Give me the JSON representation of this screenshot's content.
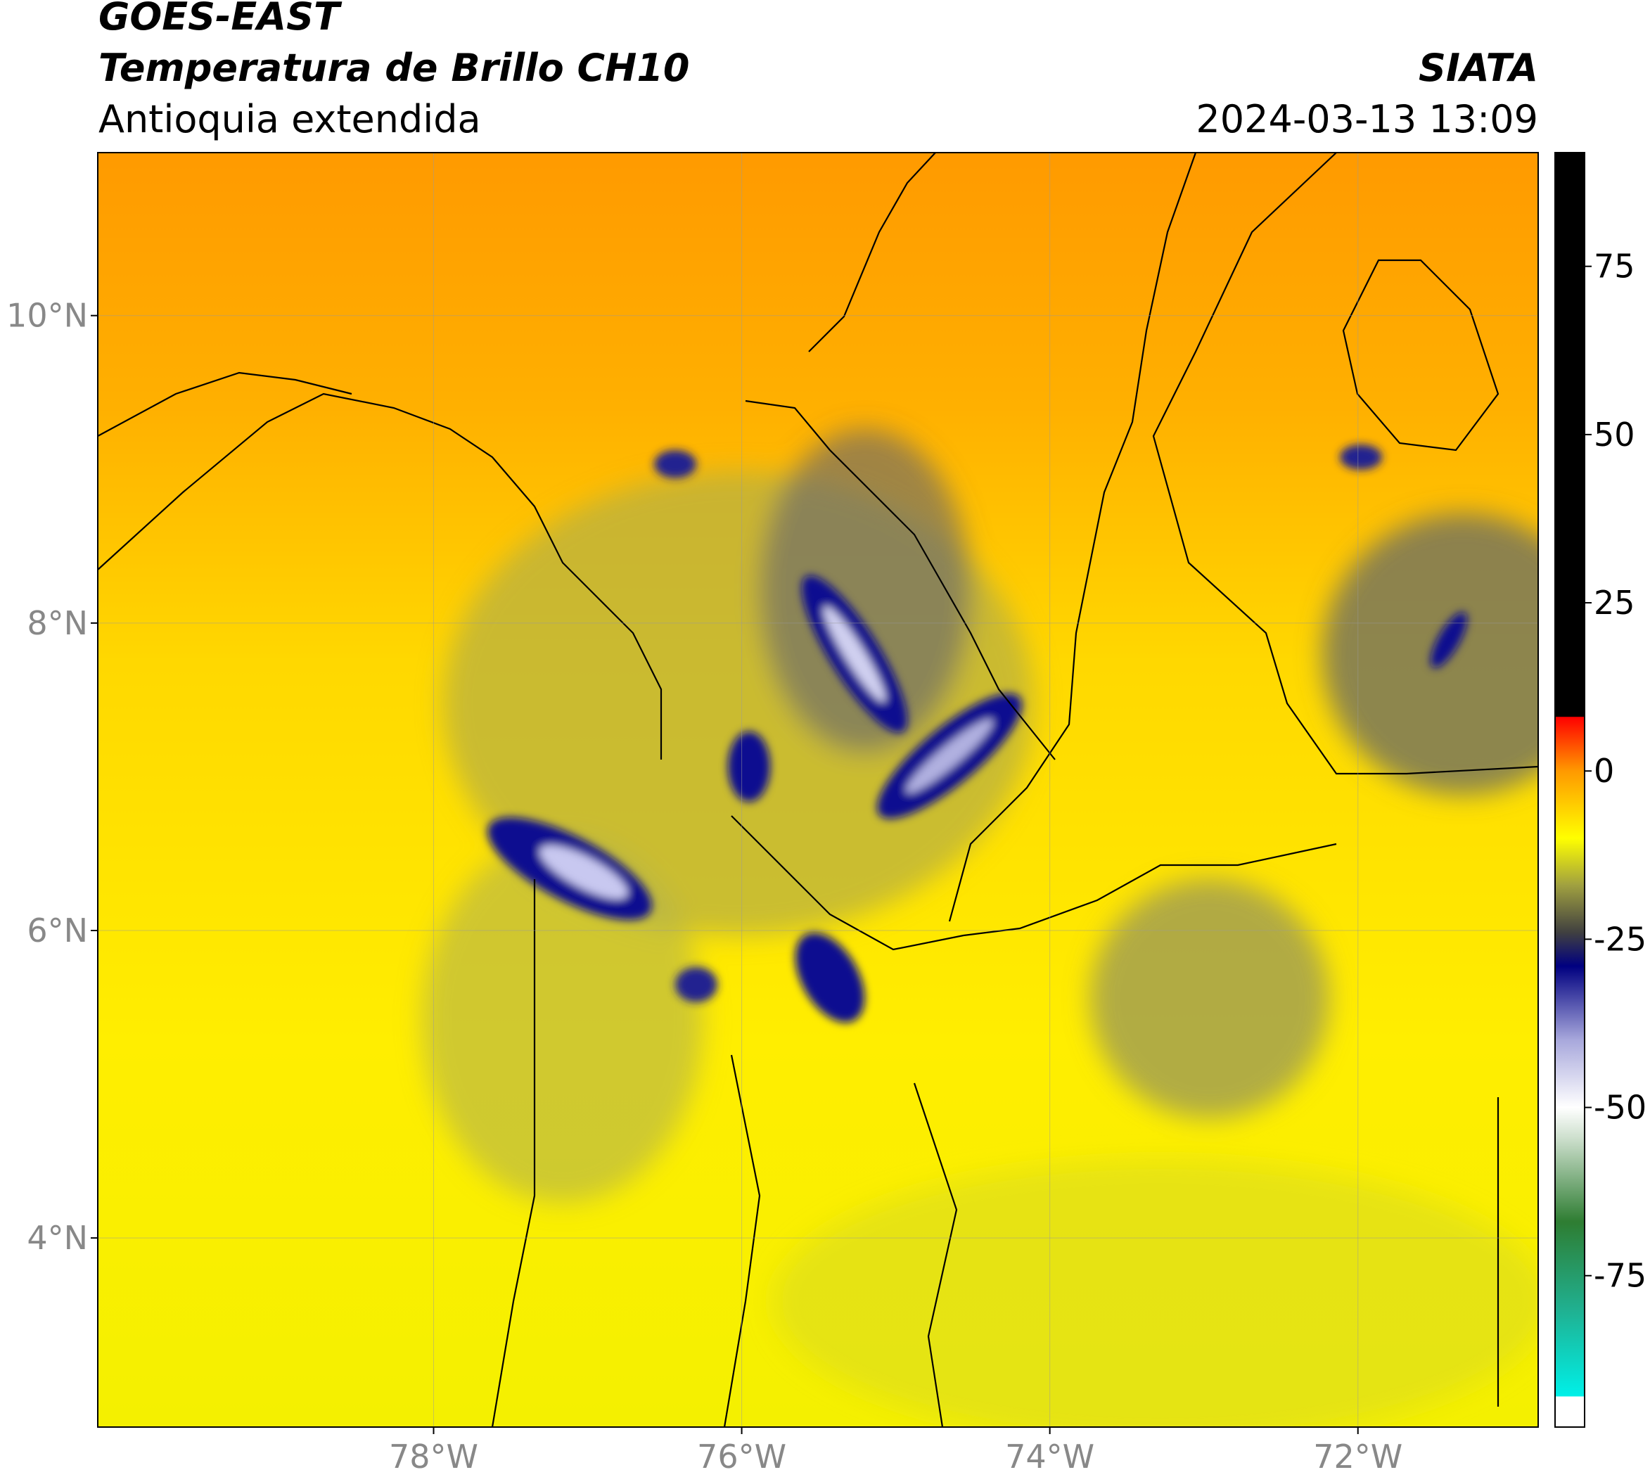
{
  "header": {
    "title": "GOES-EAST",
    "subtitle": "Temperatura de Brillo CH10",
    "region": "Antioquia extendida",
    "source": "SIATA",
    "datetime": "2024-03-13 13:09"
  },
  "map": {
    "type": "map",
    "xlim": [
      -80.18,
      -70.83
    ],
    "ylim": [
      2.77,
      11.06
    ],
    "xticks": [
      {
        "value": -78,
        "label": "78°W"
      },
      {
        "value": -76,
        "label": "76°W"
      },
      {
        "value": -74,
        "label": "74°W"
      },
      {
        "value": -72,
        "label": "72°W"
      }
    ],
    "yticks": [
      {
        "value": 4,
        "label": "4°N"
      },
      {
        "value": 6,
        "label": "6°N"
      },
      {
        "value": 8,
        "label": "8°N"
      },
      {
        "value": 10,
        "label": "10°N"
      }
    ],
    "grid": true
  },
  "colorbar": {
    "lim": [
      -97.5,
      91.9
    ],
    "ticks": [
      -75,
      -50,
      -25,
      0,
      25,
      50,
      75
    ],
    "colors": [
      {
        "value": -97.5,
        "color": "#ffffff"
      },
      {
        "value": -93,
        "color": "#ffffff"
      },
      {
        "value": -92.9,
        "color": "#00f0e8"
      },
      {
        "value": -80,
        "color": "#20b090"
      },
      {
        "value": -67,
        "color": "#2e7d32"
      },
      {
        "value": -55,
        "color": "#c8dcc8"
      },
      {
        "value": -50,
        "color": "#ffffff"
      },
      {
        "value": -40,
        "color": "#a8a8dc"
      },
      {
        "value": -29,
        "color": "#000080"
      },
      {
        "value": -24,
        "color": "#404040"
      },
      {
        "value": -17,
        "color": "#a0a040"
      },
      {
        "value": -10,
        "color": "#ffff00"
      },
      {
        "value": 0,
        "color": "#ff9900"
      },
      {
        "value": 8,
        "color": "#ff0000"
      },
      {
        "value": 8.1,
        "color": "#000000"
      },
      {
        "value": 91.9,
        "color": "#000000"
      }
    ]
  }
}
